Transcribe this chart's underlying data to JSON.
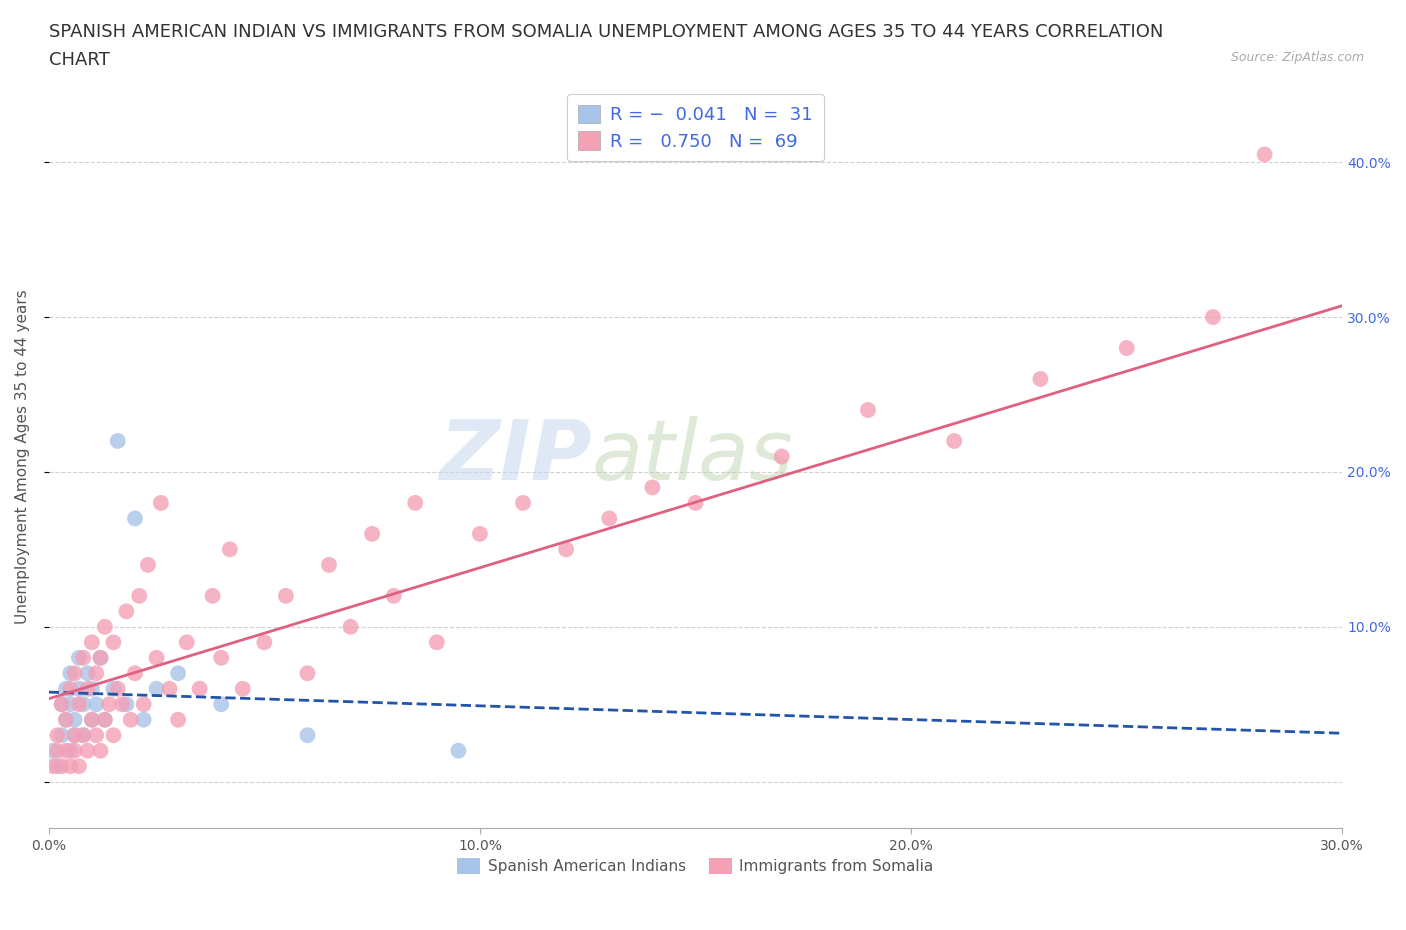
{
  "title_line1": "SPANISH AMERICAN INDIAN VS IMMIGRANTS FROM SOMALIA UNEMPLOYMENT AMONG AGES 35 TO 44 YEARS CORRELATION",
  "title_line2": "CHART",
  "source": "Source: ZipAtlas.com",
  "ylabel": "Unemployment Among Ages 35 to 44 years",
  "xmin": 0.0,
  "xmax": 0.3,
  "ymin": -0.03,
  "ymax": 0.45,
  "r_blue": -0.041,
  "n_blue": 31,
  "r_pink": 0.75,
  "n_pink": 69,
  "watermark_zip": "ZIP",
  "watermark_atlas": "atlas",
  "legend_label_blue": "Spanish American Indians",
  "legend_label_pink": "Immigrants from Somalia",
  "blue_color": "#a8c4e8",
  "pink_color": "#f4a0b5",
  "blue_line_color": "#2255aa",
  "pink_line_color": "#e06080",
  "grid_color": "#cccccc",
  "background_color": "#ffffff",
  "title_fontsize": 13,
  "axis_fontsize": 11,
  "xticks": [
    0.0,
    0.1,
    0.2,
    0.3
  ],
  "yticks": [
    0.1,
    0.2,
    0.3,
    0.4
  ],
  "blue_x": [
    0.001,
    0.002,
    0.003,
    0.003,
    0.004,
    0.004,
    0.005,
    0.005,
    0.005,
    0.006,
    0.006,
    0.007,
    0.007,
    0.008,
    0.008,
    0.009,
    0.01,
    0.01,
    0.011,
    0.012,
    0.013,
    0.015,
    0.016,
    0.018,
    0.02,
    0.022,
    0.025,
    0.03,
    0.04,
    0.06,
    0.095
  ],
  "blue_y": [
    0.02,
    0.01,
    0.05,
    0.03,
    0.04,
    0.06,
    0.02,
    0.05,
    0.07,
    0.03,
    0.04,
    0.06,
    0.08,
    0.05,
    0.03,
    0.07,
    0.04,
    0.06,
    0.05,
    0.08,
    0.04,
    0.06,
    0.22,
    0.05,
    0.17,
    0.04,
    0.06,
    0.07,
    0.05,
    0.03,
    0.02
  ],
  "pink_x": [
    0.001,
    0.002,
    0.002,
    0.003,
    0.003,
    0.004,
    0.004,
    0.005,
    0.005,
    0.006,
    0.006,
    0.006,
    0.007,
    0.007,
    0.008,
    0.008,
    0.009,
    0.009,
    0.01,
    0.01,
    0.011,
    0.011,
    0.012,
    0.012,
    0.013,
    0.013,
    0.014,
    0.015,
    0.015,
    0.016,
    0.017,
    0.018,
    0.019,
    0.02,
    0.021,
    0.022,
    0.023,
    0.025,
    0.026,
    0.028,
    0.03,
    0.032,
    0.035,
    0.038,
    0.04,
    0.042,
    0.045,
    0.05,
    0.055,
    0.06,
    0.065,
    0.07,
    0.075,
    0.08,
    0.085,
    0.09,
    0.1,
    0.11,
    0.12,
    0.13,
    0.14,
    0.15,
    0.17,
    0.19,
    0.21,
    0.23,
    0.25,
    0.27,
    0.282
  ],
  "pink_y": [
    0.01,
    0.02,
    0.03,
    0.01,
    0.05,
    0.02,
    0.04,
    0.01,
    0.06,
    0.02,
    0.03,
    0.07,
    0.01,
    0.05,
    0.03,
    0.08,
    0.02,
    0.06,
    0.04,
    0.09,
    0.03,
    0.07,
    0.02,
    0.08,
    0.04,
    0.1,
    0.05,
    0.03,
    0.09,
    0.06,
    0.05,
    0.11,
    0.04,
    0.07,
    0.12,
    0.05,
    0.14,
    0.08,
    0.18,
    0.06,
    0.04,
    0.09,
    0.06,
    0.12,
    0.08,
    0.15,
    0.06,
    0.09,
    0.12,
    0.07,
    0.14,
    0.1,
    0.16,
    0.12,
    0.18,
    0.09,
    0.16,
    0.18,
    0.15,
    0.17,
    0.19,
    0.18,
    0.21,
    0.24,
    0.22,
    0.26,
    0.28,
    0.3,
    0.405
  ]
}
